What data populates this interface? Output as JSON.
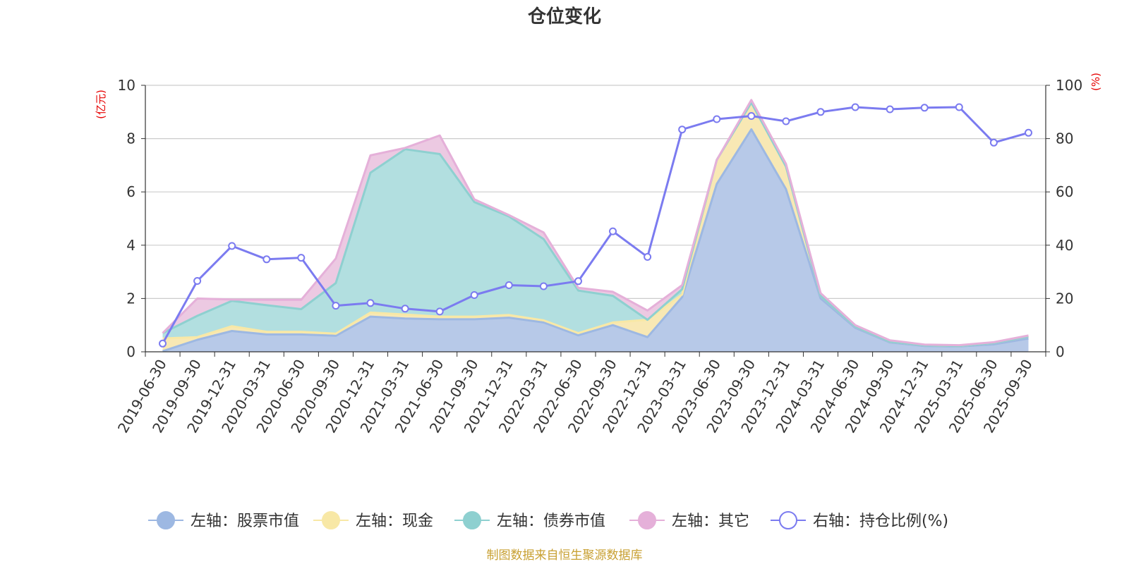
{
  "chart_data": {
    "type": "area",
    "title": "仓位变化",
    "source_note": "制图数据来自恒生聚源数据库",
    "left_axis": {
      "unit_label": "(亿元)",
      "min": 0,
      "max": 10,
      "ticks": [
        "0",
        "2",
        "4",
        "6",
        "8",
        "10"
      ]
    },
    "right_axis": {
      "unit_label": "(%)",
      "min": 0,
      "max": 100,
      "ticks": [
        "0",
        "20",
        "40",
        "60",
        "80",
        "100"
      ]
    },
    "categories": [
      "2019-06-30",
      "2019-09-30",
      "2019-12-31",
      "2020-03-31",
      "2020-06-30",
      "2020-09-30",
      "2020-12-31",
      "2021-03-31",
      "2021-06-30",
      "2021-09-30",
      "2021-12-31",
      "2022-03-31",
      "2022-06-30",
      "2022-09-30",
      "2022-12-31",
      "2023-03-31",
      "2023-06-30",
      "2023-09-30",
      "2023-12-31",
      "2024-03-31",
      "2024-06-30",
      "2024-09-30",
      "2024-12-31",
      "2025-03-31",
      "2025-06-30",
      "2025-09-30"
    ],
    "stack_series": [
      {
        "name": "左轴：股票市值",
        "color": "#9db8e2",
        "fill": "#b7c9e8",
        "values": [
          0.02,
          0.45,
          0.78,
          0.65,
          0.65,
          0.6,
          1.32,
          1.25,
          1.22,
          1.22,
          1.28,
          1.1,
          0.62,
          1.0,
          0.55,
          2.05,
          6.3,
          8.35,
          6.1,
          2.0,
          0.9,
          0.35,
          0.22,
          0.2,
          0.28,
          0.5
        ]
      },
      {
        "name": "左轴：现金",
        "color": "#f8e8a6",
        "fill": "#f8e8b4",
        "values": [
          0.48,
          0.1,
          0.18,
          0.1,
          0.1,
          0.08,
          0.15,
          0.15,
          0.1,
          0.1,
          0.1,
          0.08,
          0.08,
          0.1,
          0.65,
          0.1,
          0.9,
          1.0,
          0.85,
          0.1,
          0.05,
          0.03,
          0.02,
          0.02,
          0.05,
          0.08
        ]
      },
      {
        "name": "左轴：债券市值",
        "color": "#8ed0d0",
        "fill": "#b2dfe0",
        "values": [
          0.2,
          0.8,
          0.95,
          1.0,
          0.85,
          1.9,
          5.25,
          6.2,
          6.1,
          4.3,
          3.7,
          3.05,
          1.6,
          1.0,
          0.0,
          0.2,
          0.0,
          0.0,
          0.0,
          0.0,
          0.0,
          0.0,
          0.0,
          0.0,
          0.0,
          0.0
        ]
      },
      {
        "name": "左轴：其它",
        "color": "#e5b0d9",
        "fill": "#ecc9e2",
        "values": [
          0.0,
          0.65,
          0.05,
          0.2,
          0.35,
          0.92,
          0.65,
          0.05,
          0.7,
          0.1,
          0.05,
          0.25,
          0.1,
          0.15,
          0.35,
          0.15,
          0.0,
          0.1,
          0.1,
          0.1,
          0.05,
          0.05,
          0.03,
          0.03,
          0.03,
          0.03
        ]
      }
    ],
    "line_series": {
      "name": "右轴：持仓比例(%)",
      "color": "#7b7bf0",
      "values": [
        3.1,
        26.6,
        39.7,
        34.7,
        35.3,
        17.3,
        18.3,
        16.2,
        15.1,
        21.3,
        25.0,
        24.6,
        26.5,
        45.2,
        35.6,
        83.4,
        87.3,
        88.5,
        86.5,
        90.0,
        91.8,
        91.0,
        91.6,
        91.8,
        78.5,
        82.2
      ]
    },
    "legend": [
      "左轴：股票市值",
      "左轴：现金",
      "左轴：债券市值",
      "左轴：其它",
      "右轴：持仓比例(%)"
    ],
    "grid": true
  }
}
